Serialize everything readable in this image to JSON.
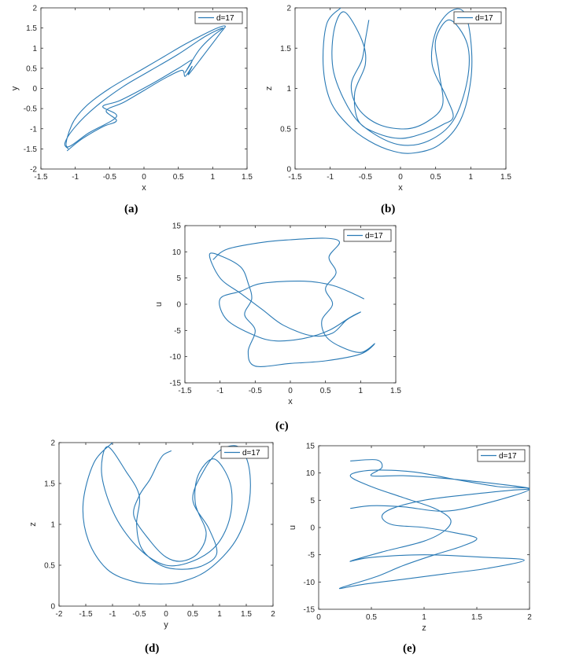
{
  "series_color": "#2a7ab5",
  "chart_data": [
    {
      "id": "a",
      "caption": "(a)",
      "type": "line",
      "xlabel": "x",
      "ylabel": "y",
      "xlim": [
        -1.5,
        1.5
      ],
      "ylim": [
        -2,
        2
      ],
      "xticks": [
        "-1.5",
        "-1",
        "-0.5",
        "0",
        "0.5",
        "1",
        "1.5"
      ],
      "yticks": [
        "-2",
        "-1.5",
        "-1",
        "-0.5",
        "0",
        "0.5",
        "1",
        "1.5",
        "2"
      ],
      "legend_position": "top-right",
      "series": [
        {
          "name": "d=17",
          "x": [
            -1.12,
            -0.9,
            -0.6,
            -0.4,
            -0.55,
            -0.3,
            0.0,
            0.3,
            0.55,
            0.6,
            0.7,
            0.65,
            0.9,
            1.1,
            1.18,
            1.0,
            0.6,
            0.3,
            0.0,
            -0.5,
            -0.85,
            -1.05,
            -1.12,
            -0.8,
            -0.4,
            -0.6,
            -0.35,
            0.1,
            0.5,
            0.7,
            0.6,
            0.8,
            1.0,
            1.15,
            0.9,
            0.5,
            0.1,
            -0.3,
            -0.7,
            -1.0,
            -1.15,
            -1.1
          ],
          "y": [
            -1.55,
            -1.25,
            -0.95,
            -0.8,
            -0.55,
            -0.35,
            -0.05,
            0.25,
            0.45,
            0.3,
            0.55,
            0.35,
            0.9,
            1.35,
            1.55,
            1.45,
            1.1,
            0.8,
            0.5,
            0.0,
            -0.45,
            -0.9,
            -1.45,
            -1.1,
            -0.7,
            -0.45,
            -0.3,
            0.1,
            0.5,
            0.7,
            0.4,
            0.95,
            1.3,
            1.5,
            1.3,
            0.85,
            0.45,
            0.05,
            -0.45,
            -0.95,
            -1.35,
            -1.5
          ]
        }
      ]
    },
    {
      "id": "b",
      "caption": "(b)",
      "type": "line",
      "xlabel": "x",
      "ylabel": "z",
      "xlim": [
        -1.5,
        1.5
      ],
      "ylim": [
        0,
        2
      ],
      "xticks": [
        "-1.5",
        "-1",
        "-0.5",
        "0",
        "0.5",
        "1",
        "1.5"
      ],
      "yticks": [
        "0",
        "0.5",
        "1",
        "1.5",
        "2"
      ],
      "legend_position": "top-right",
      "series": [
        {
          "name": "d=17",
          "x": [
            -0.85,
            -1.05,
            -1.1,
            -1.0,
            -0.75,
            -0.45,
            -0.1,
            0.2,
            0.55,
            0.85,
            1.0,
            1.0,
            0.9,
            0.7,
            0.5,
            0.45,
            0.65,
            0.75,
            0.6,
            0.35,
            0.0,
            -0.35,
            -0.6,
            -0.65,
            -0.5,
            -0.55,
            -0.8,
            -0.95,
            -0.95,
            -0.7,
            -0.4,
            0.0,
            0.4,
            0.75,
            0.95,
            0.95,
            0.7,
            0.5,
            0.55,
            0.6,
            0.4,
            0.1,
            -0.3,
            -0.6,
            -0.7,
            -0.55,
            -0.5,
            -0.45
          ],
          "y": [
            2.0,
            1.8,
            1.3,
            0.85,
            0.55,
            0.35,
            0.22,
            0.2,
            0.3,
            0.6,
            1.1,
            1.6,
            1.95,
            1.95,
            1.7,
            1.3,
            0.9,
            0.65,
            0.55,
            0.45,
            0.38,
            0.45,
            0.6,
            0.95,
            1.3,
            1.6,
            1.95,
            1.7,
            1.2,
            0.7,
            0.45,
            0.3,
            0.35,
            0.6,
            1.1,
            1.55,
            1.85,
            1.6,
            1.2,
            0.8,
            0.6,
            0.5,
            0.55,
            0.75,
            1.05,
            1.35,
            1.6,
            1.85
          ]
        }
      ]
    },
    {
      "id": "c",
      "caption": "(c)",
      "type": "line",
      "xlabel": "x",
      "ylabel": "u",
      "xlim": [
        -1.5,
        1.5
      ],
      "ylim": [
        -15,
        15
      ],
      "xticks": [
        "-1.5",
        "-1",
        "-0.5",
        "0",
        "0.5",
        "1",
        "1.5"
      ],
      "yticks": [
        "-15",
        "-10",
        "-5",
        "0",
        "5",
        "10",
        "15"
      ],
      "legend_position": "top-right",
      "series": [
        {
          "name": "d=17",
          "x": [
            -1.1,
            -0.9,
            -0.4,
            0.0,
            0.5,
            0.7,
            0.55,
            0.65,
            0.5,
            0.6,
            0.45,
            0.5,
            0.7,
            1.0,
            1.2,
            1.0,
            0.5,
            0.0,
            -0.5,
            -0.6,
            -0.5,
            -0.65,
            -0.55,
            -0.6,
            -0.7,
            -0.95,
            -1.15,
            -1.0,
            -0.7,
            -0.4,
            -0.1,
            0.3,
            0.6,
            0.8,
            1.0,
            0.85,
            0.55,
            0.2,
            -0.2,
            -0.5,
            -0.9,
            -1.0,
            -0.7,
            -0.4,
            0.2,
            0.6,
            0.9,
            1.05
          ],
          "y": [
            8.5,
            10.5,
            11.8,
            12.3,
            12.6,
            11.8,
            9,
            6,
            3,
            0,
            -3,
            -6,
            -8,
            -9.2,
            -7.5,
            -9.5,
            -10.8,
            -11.3,
            -11.8,
            -9,
            -5,
            -2,
            1,
            4,
            7,
            9,
            9.5,
            5,
            2,
            -1,
            -4,
            -6,
            -5.5,
            -3,
            -1.5,
            -2.5,
            -5,
            -6.5,
            -7,
            -6,
            -3,
            1,
            2.5,
            4,
            4.4,
            3.6,
            2,
            1
          ]
        }
      ]
    },
    {
      "id": "d",
      "caption": "(d)",
      "type": "line",
      "xlabel": "y",
      "ylabel": "z",
      "xlim": [
        -2,
        2
      ],
      "ylim": [
        0,
        2
      ],
      "xticks": [
        "-2",
        "-1.5",
        "-1",
        "-0.5",
        "0",
        "0.5",
        "1",
        "1.5",
        "2"
      ],
      "yticks": [
        "0",
        "0.5",
        "1",
        "1.5",
        "2"
      ],
      "legend_position": "top-right",
      "series": [
        {
          "name": "d=17",
          "x": [
            -1.0,
            -1.35,
            -1.55,
            -1.45,
            -1.1,
            -0.6,
            -0.1,
            0.3,
            0.8,
            1.3,
            1.55,
            1.55,
            1.35,
            1.0,
            0.7,
            0.5,
            0.8,
            0.95,
            0.7,
            0.3,
            -0.1,
            -0.45,
            -0.55,
            -0.5,
            -0.75,
            -1.1,
            -1.2,
            -0.95,
            -0.5,
            0.0,
            0.5,
            0.95,
            1.2,
            1.2,
            0.9,
            0.6,
            0.55,
            0.75,
            0.6,
            0.3,
            0.0,
            -0.3,
            -0.6,
            -0.5,
            -0.3,
            -0.15,
            -0.05,
            0.1
          ],
          "y": [
            2.0,
            1.75,
            1.25,
            0.8,
            0.45,
            0.3,
            0.27,
            0.3,
            0.45,
            0.8,
            1.25,
            1.7,
            1.95,
            1.9,
            1.65,
            1.3,
            0.95,
            0.65,
            0.5,
            0.45,
            0.5,
            0.7,
            1.0,
            1.35,
            1.65,
            1.95,
            1.6,
            1.1,
            0.7,
            0.5,
            0.55,
            0.75,
            1.1,
            1.5,
            1.8,
            1.6,
            1.25,
            0.9,
            0.65,
            0.55,
            0.6,
            0.8,
            1.1,
            1.35,
            1.55,
            1.75,
            1.85,
            1.9
          ]
        }
      ]
    },
    {
      "id": "e",
      "caption": "(e)",
      "type": "line",
      "xlabel": "z",
      "ylabel": "u",
      "xlim": [
        0,
        2
      ],
      "ylim": [
        -15,
        15
      ],
      "xticks": [
        "0",
        "0.5",
        "1",
        "1.5",
        "2"
      ],
      "yticks": [
        "-15",
        "-10",
        "-5",
        "0",
        "5",
        "10",
        "15"
      ],
      "legend_position": "top-right",
      "series": [
        {
          "name": "d=17",
          "x": [
            0.3,
            0.55,
            0.6,
            0.5,
            0.8,
            1.2,
            1.6,
            2.0,
            1.8,
            1.4,
            1.0,
            0.7,
            0.6,
            0.7,
            1.0,
            1.3,
            1.5,
            1.35,
            1.1,
            0.8,
            0.55,
            0.3,
            0.2,
            0.4,
            0.8,
            1.2,
            1.6,
            1.95,
            1.6,
            1.0,
            0.5,
            0.3,
            0.6,
            1.0,
            1.2,
            1.25,
            1.1,
            0.8,
            0.5,
            0.3,
            0.5,
            0.9,
            1.3,
            1.7,
            2.0,
            1.6,
            1.2,
            0.8,
            0.5,
            0.3
          ],
          "y": [
            12.2,
            12.4,
            11,
            9.5,
            9.5,
            9.0,
            8.2,
            7.2,
            6.8,
            6.0,
            5.0,
            3.5,
            2.0,
            0.5,
            0,
            -1,
            -2,
            -3.5,
            -5,
            -7,
            -9,
            -10.5,
            -11.2,
            -10.5,
            -9.5,
            -8.5,
            -7.5,
            -6.0,
            -5.5,
            -5.0,
            -5.5,
            -6.2,
            -4.5,
            -2.5,
            -0.5,
            1.5,
            3.5,
            5.5,
            7.5,
            9.5,
            10.5,
            10.2,
            8.8,
            7.5,
            7.0,
            4.5,
            3.0,
            3.8,
            4.0,
            3.5
          ]
        }
      ]
    }
  ]
}
